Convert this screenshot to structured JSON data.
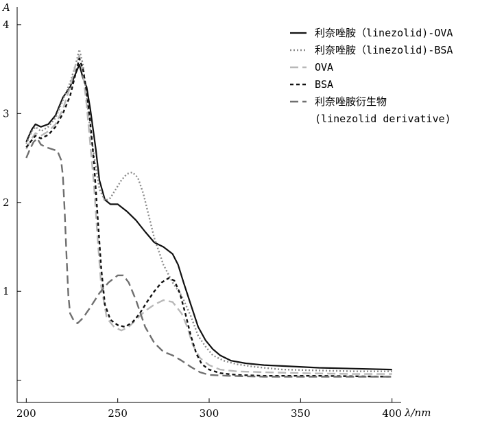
{
  "chart_data": {
    "type": "line",
    "ylabel": "A",
    "xlabel": "λ/nm",
    "xlim": [
      195,
      405
    ],
    "ylim": [
      -0.25,
      4.2
    ],
    "xticks": [
      200,
      250,
      300,
      350,
      400
    ],
    "yticks": [
      1,
      2,
      3,
      4
    ],
    "x_tick_labels": [
      "200",
      "250",
      "300",
      "350",
      "400"
    ],
    "y_tick_labels": [
      "1",
      "2",
      "3",
      "4"
    ],
    "grid": false,
    "legend_position": "top-right",
    "series": [
      {
        "name": "利奈唑胺（linezolid)-OVA",
        "color": "#111111",
        "dash": "solid",
        "points": [
          [
            200,
            2.68
          ],
          [
            203,
            2.82
          ],
          [
            205,
            2.88
          ],
          [
            208,
            2.85
          ],
          [
            212,
            2.88
          ],
          [
            216,
            2.98
          ],
          [
            220,
            3.18
          ],
          [
            224,
            3.3
          ],
          [
            227,
            3.45
          ],
          [
            229,
            3.55
          ],
          [
            231,
            3.4
          ],
          [
            233,
            3.3
          ],
          [
            235,
            3.05
          ],
          [
            238,
            2.6
          ],
          [
            240,
            2.25
          ],
          [
            243,
            2.03
          ],
          [
            246,
            1.98
          ],
          [
            250,
            1.98
          ],
          [
            255,
            1.9
          ],
          [
            260,
            1.8
          ],
          [
            265,
            1.67
          ],
          [
            270,
            1.55
          ],
          [
            275,
            1.5
          ],
          [
            280,
            1.42
          ],
          [
            283,
            1.3
          ],
          [
            286,
            1.1
          ],
          [
            290,
            0.85
          ],
          [
            294,
            0.6
          ],
          [
            298,
            0.45
          ],
          [
            302,
            0.35
          ],
          [
            306,
            0.28
          ],
          [
            312,
            0.22
          ],
          [
            320,
            0.19
          ],
          [
            330,
            0.17
          ],
          [
            340,
            0.16
          ],
          [
            360,
            0.14
          ],
          [
            380,
            0.13
          ],
          [
            400,
            0.12
          ]
        ]
      },
      {
        "name": "利奈唑胺（linezolid)-BSA",
        "color": "#8a8a8a",
        "dash": "dotted",
        "points": [
          [
            200,
            2.66
          ],
          [
            203,
            2.8
          ],
          [
            205,
            2.85
          ],
          [
            208,
            2.8
          ],
          [
            212,
            2.85
          ],
          [
            216,
            2.95
          ],
          [
            220,
            3.15
          ],
          [
            224,
            3.35
          ],
          [
            227,
            3.55
          ],
          [
            229,
            3.72
          ],
          [
            231,
            3.55
          ],
          [
            233,
            3.2
          ],
          [
            235,
            2.8
          ],
          [
            238,
            2.4
          ],
          [
            240,
            2.15
          ],
          [
            243,
            2.02
          ],
          [
            246,
            2.05
          ],
          [
            249,
            2.15
          ],
          [
            252,
            2.25
          ],
          [
            255,
            2.32
          ],
          [
            258,
            2.34
          ],
          [
            261,
            2.28
          ],
          [
            264,
            2.1
          ],
          [
            267,
            1.85
          ],
          [
            270,
            1.6
          ],
          [
            275,
            1.3
          ],
          [
            280,
            1.1
          ],
          [
            285,
            0.95
          ],
          [
            290,
            0.72
          ],
          [
            294,
            0.5
          ],
          [
            298,
            0.38
          ],
          [
            302,
            0.28
          ],
          [
            308,
            0.22
          ],
          [
            315,
            0.18
          ],
          [
            325,
            0.15
          ],
          [
            340,
            0.12
          ],
          [
            360,
            0.11
          ],
          [
            380,
            0.1
          ],
          [
            400,
            0.1
          ]
        ]
      },
      {
        "name": "OVA",
        "color": "#b8b8b8",
        "dash": "long-dash",
        "points": [
          [
            200,
            2.6
          ],
          [
            203,
            2.72
          ],
          [
            205,
            2.78
          ],
          [
            208,
            2.75
          ],
          [
            212,
            2.8
          ],
          [
            216,
            2.88
          ],
          [
            220,
            3.05
          ],
          [
            224,
            3.3
          ],
          [
            227,
            3.55
          ],
          [
            229,
            3.65
          ],
          [
            231,
            3.45
          ],
          [
            233,
            3.1
          ],
          [
            235,
            2.65
          ],
          [
            237,
            2.2
          ],
          [
            239,
            1.6
          ],
          [
            241,
            1.05
          ],
          [
            244,
            0.7
          ],
          [
            248,
            0.6
          ],
          [
            252,
            0.56
          ],
          [
            256,
            0.6
          ],
          [
            260,
            0.68
          ],
          [
            265,
            0.78
          ],
          [
            270,
            0.85
          ],
          [
            275,
            0.9
          ],
          [
            280,
            0.88
          ],
          [
            285,
            0.75
          ],
          [
            288,
            0.6
          ],
          [
            291,
            0.4
          ],
          [
            295,
            0.25
          ],
          [
            300,
            0.17
          ],
          [
            306,
            0.12
          ],
          [
            315,
            0.1
          ],
          [
            330,
            0.09
          ],
          [
            350,
            0.08
          ],
          [
            380,
            0.07
          ],
          [
            400,
            0.07
          ]
        ]
      },
      {
        "name": "BSA",
        "color": "#111111",
        "dash": "short-dash",
        "points": [
          [
            200,
            2.62
          ],
          [
            203,
            2.7
          ],
          [
            205,
            2.75
          ],
          [
            208,
            2.72
          ],
          [
            212,
            2.76
          ],
          [
            216,
            2.85
          ],
          [
            220,
            3.0
          ],
          [
            224,
            3.2
          ],
          [
            227,
            3.45
          ],
          [
            229,
            3.62
          ],
          [
            231,
            3.5
          ],
          [
            233,
            3.25
          ],
          [
            235,
            2.9
          ],
          [
            237,
            2.45
          ],
          [
            239,
            1.85
          ],
          [
            241,
            1.25
          ],
          [
            243,
            0.85
          ],
          [
            246,
            0.68
          ],
          [
            250,
            0.62
          ],
          [
            254,
            0.6
          ],
          [
            258,
            0.65
          ],
          [
            262,
            0.75
          ],
          [
            266,
            0.88
          ],
          [
            270,
            1.0
          ],
          [
            274,
            1.1
          ],
          [
            278,
            1.15
          ],
          [
            281,
            1.12
          ],
          [
            284,
            0.98
          ],
          [
            287,
            0.75
          ],
          [
            290,
            0.5
          ],
          [
            293,
            0.3
          ],
          [
            296,
            0.18
          ],
          [
            300,
            0.12
          ],
          [
            306,
            0.08
          ],
          [
            315,
            0.06
          ],
          [
            330,
            0.05
          ],
          [
            360,
            0.05
          ],
          [
            400,
            0.04
          ]
        ]
      },
      {
        "name": "利奈唑胺衍生物\n(linezolid derivative)",
        "color": "#6f6f6f",
        "dash": "long-dash",
        "points": [
          [
            200,
            2.5
          ],
          [
            202,
            2.6
          ],
          [
            204,
            2.68
          ],
          [
            206,
            2.72
          ],
          [
            208,
            2.65
          ],
          [
            211,
            2.62
          ],
          [
            214,
            2.6
          ],
          [
            217,
            2.58
          ],
          [
            219,
            2.48
          ],
          [
            220,
            2.3
          ],
          [
            221,
            1.9
          ],
          [
            222,
            1.4
          ],
          [
            223,
            0.95
          ],
          [
            224,
            0.75
          ],
          [
            226,
            0.67
          ],
          [
            228,
            0.64
          ],
          [
            231,
            0.7
          ],
          [
            235,
            0.82
          ],
          [
            240,
            0.98
          ],
          [
            245,
            1.1
          ],
          [
            250,
            1.18
          ],
          [
            253,
            1.18
          ],
          [
            256,
            1.1
          ],
          [
            260,
            0.9
          ],
          [
            265,
            0.6
          ],
          [
            270,
            0.42
          ],
          [
            275,
            0.32
          ],
          [
            280,
            0.28
          ],
          [
            285,
            0.22
          ],
          [
            290,
            0.15
          ],
          [
            295,
            0.09
          ],
          [
            300,
            0.06
          ],
          [
            310,
            0.05
          ],
          [
            330,
            0.04
          ],
          [
            360,
            0.04
          ],
          [
            400,
            0.04
          ]
        ]
      }
    ]
  }
}
